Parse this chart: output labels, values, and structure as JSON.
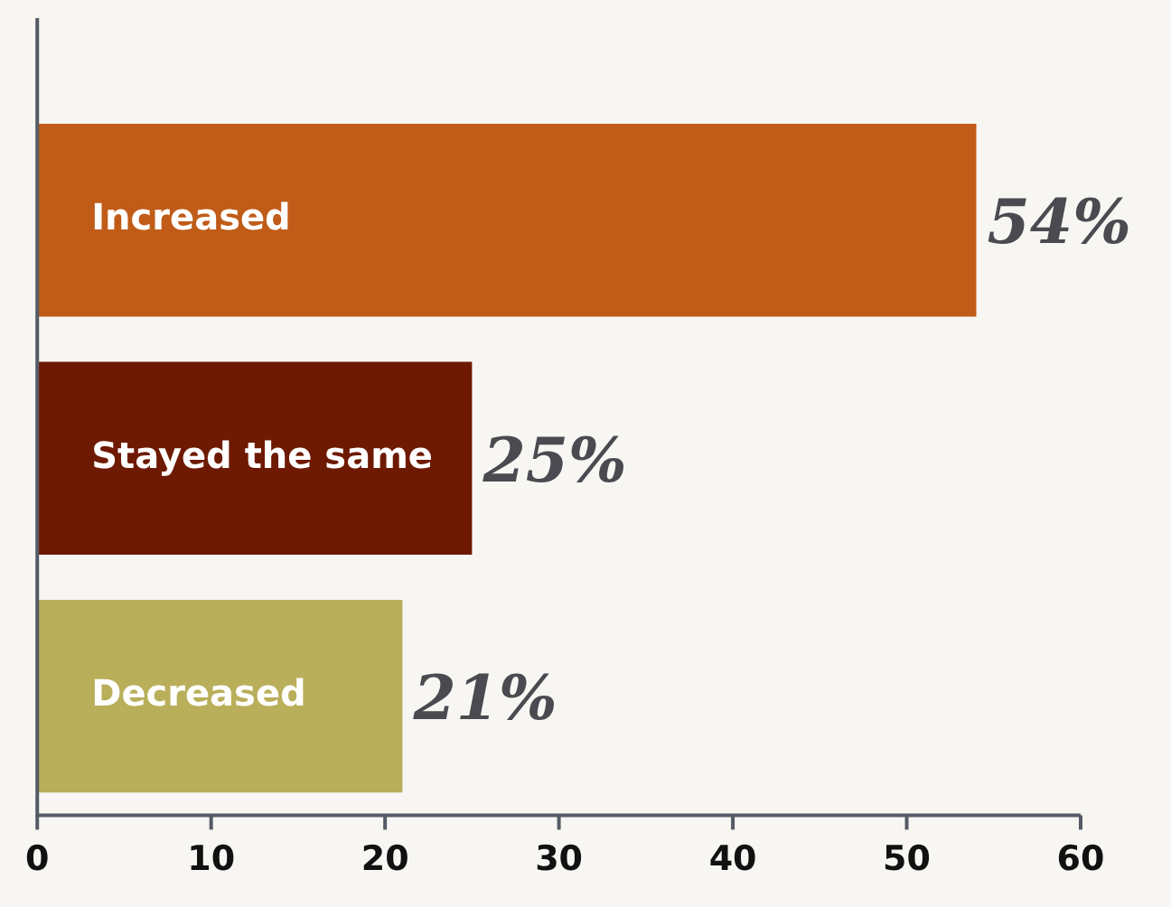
{
  "chart_data": {
    "type": "bar",
    "orientation": "horizontal",
    "categories": [
      "Increased",
      "Stayed the same",
      "Decreased"
    ],
    "values": [
      54,
      25,
      21
    ],
    "colors": [
      "#c05c18",
      "#6e1a02",
      "#b9ae5a"
    ],
    "value_labels": [
      "54%",
      "25%",
      "21%"
    ],
    "xlim": [
      0,
      60
    ],
    "xticks": [
      0,
      10,
      20,
      30,
      40,
      50,
      60
    ],
    "grid": false,
    "legend": false
  }
}
